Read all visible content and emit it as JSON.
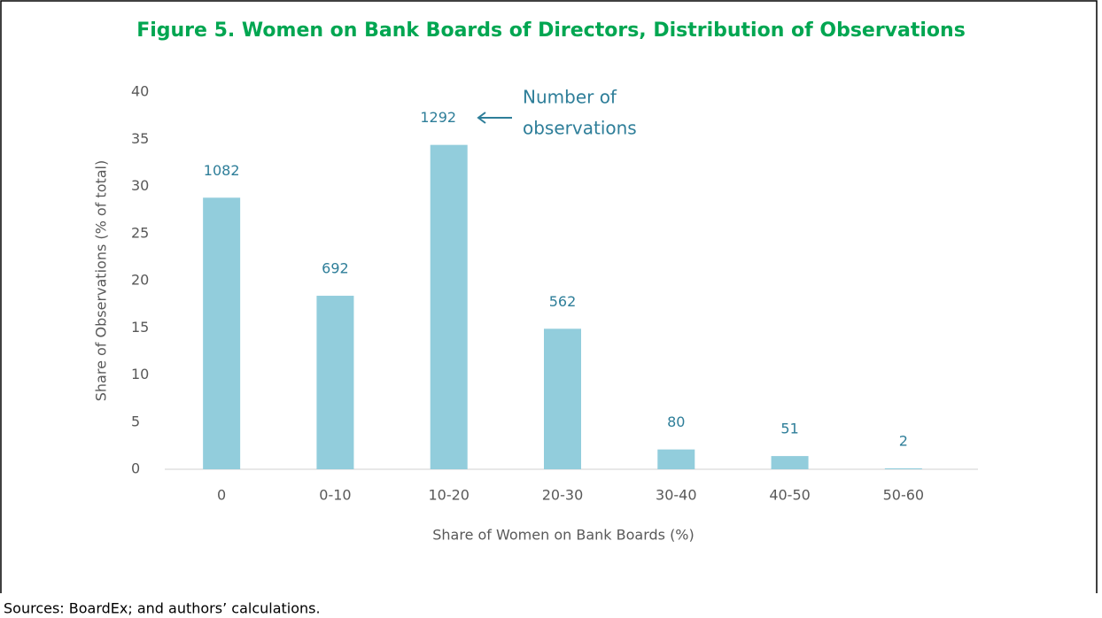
{
  "chart_data": {
    "type": "bar",
    "title": "Figure 5. Women on Bank Boards of Directors, Distribution of Observations",
    "categories": [
      "0",
      "0-10",
      "10-20",
      "20-30",
      "30-40",
      "40-50",
      "50-60"
    ],
    "values": [
      28.8,
      18.4,
      34.4,
      14.9,
      2.1,
      1.4,
      0.1
    ],
    "observations": [
      1082,
      692,
      1292,
      562,
      80,
      51,
      2
    ],
    "annotation": [
      "Number of",
      "observations"
    ],
    "color": "#92cddc",
    "ylim": [
      0,
      40
    ],
    "yticks": [
      0,
      5,
      10,
      15,
      20,
      25,
      30,
      35,
      40
    ],
    "xlabel": "Share of Women on Bank Boards (%)",
    "ylabel": "Share of Observations (% of total)",
    "source": "Sources: BoardEx; and authors’ calculations."
  }
}
